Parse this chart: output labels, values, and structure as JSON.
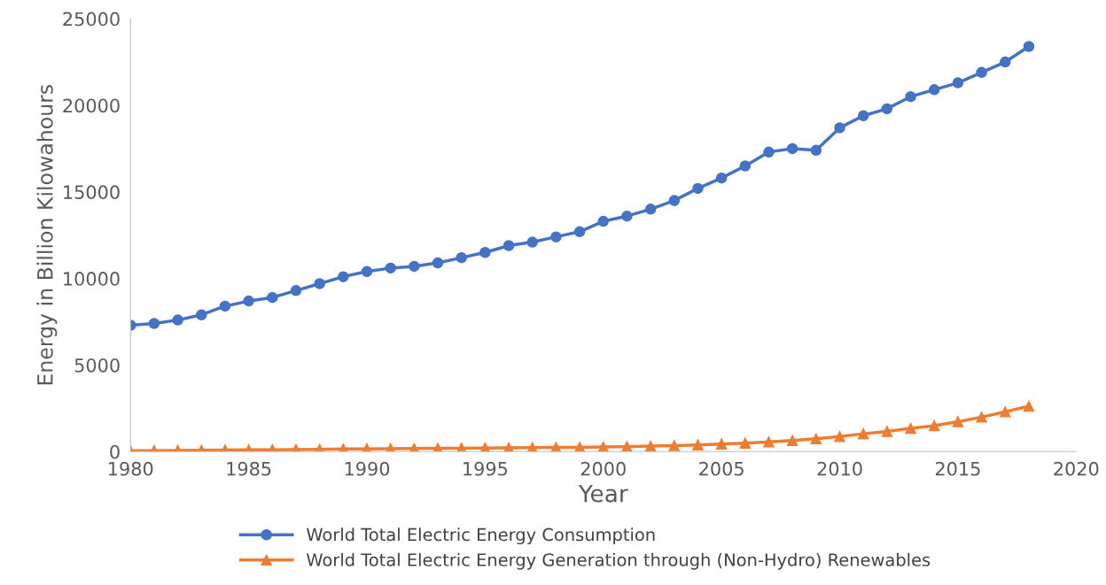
{
  "chart_data": {
    "type": "line",
    "xlabel": "Year",
    "ylabel": "Energy in Billion Kilowahours",
    "x": [
      1980,
      1981,
      1982,
      1983,
      1984,
      1985,
      1986,
      1987,
      1988,
      1989,
      1990,
      1991,
      1992,
      1993,
      1994,
      1995,
      1996,
      1997,
      1998,
      1999,
      2000,
      2001,
      2002,
      2003,
      2004,
      2005,
      2006,
      2007,
      2008,
      2009,
      2010,
      2011,
      2012,
      2013,
      2014,
      2015,
      2016,
      2017,
      2018
    ],
    "series": [
      {
        "name": "World Total Electric Energy Consumption",
        "color": "#4472c4",
        "marker": "circle",
        "values": [
          7300,
          7400,
          7600,
          7900,
          8400,
          8700,
          8900,
          9300,
          9700,
          10100,
          10400,
          10600,
          10700,
          10900,
          11200,
          11500,
          11900,
          12100,
          12400,
          12700,
          13300,
          13600,
          14000,
          14500,
          15200,
          15800,
          16500,
          17300,
          17500,
          17400,
          18700,
          19400,
          19800,
          20500,
          20900,
          21300,
          21900,
          22500,
          23400
        ]
      },
      {
        "name": "World Total Electric Energy Generation through (Non-Hydro) Renewables",
        "color": "#ed7d31",
        "marker": "triangle",
        "values": [
          50,
          60,
          70,
          80,
          90,
          100,
          110,
          120,
          130,
          150,
          160,
          170,
          180,
          190,
          200,
          210,
          220,
          230,
          240,
          250,
          270,
          290,
          320,
          350,
          390,
          440,
          490,
          560,
          640,
          740,
          870,
          1030,
          1170,
          1340,
          1500,
          1730,
          1990,
          2300,
          2620
        ]
      }
    ],
    "xlim": [
      1980,
      2020
    ],
    "xticks": [
      1980,
      1985,
      1990,
      1995,
      2000,
      2005,
      2010,
      2015,
      2020
    ],
    "ylim": [
      0,
      25000
    ],
    "yticks": [
      0,
      5000,
      10000,
      15000,
      20000,
      25000
    ],
    "grid": false,
    "legend": "bottom",
    "line_style": "solid"
  }
}
